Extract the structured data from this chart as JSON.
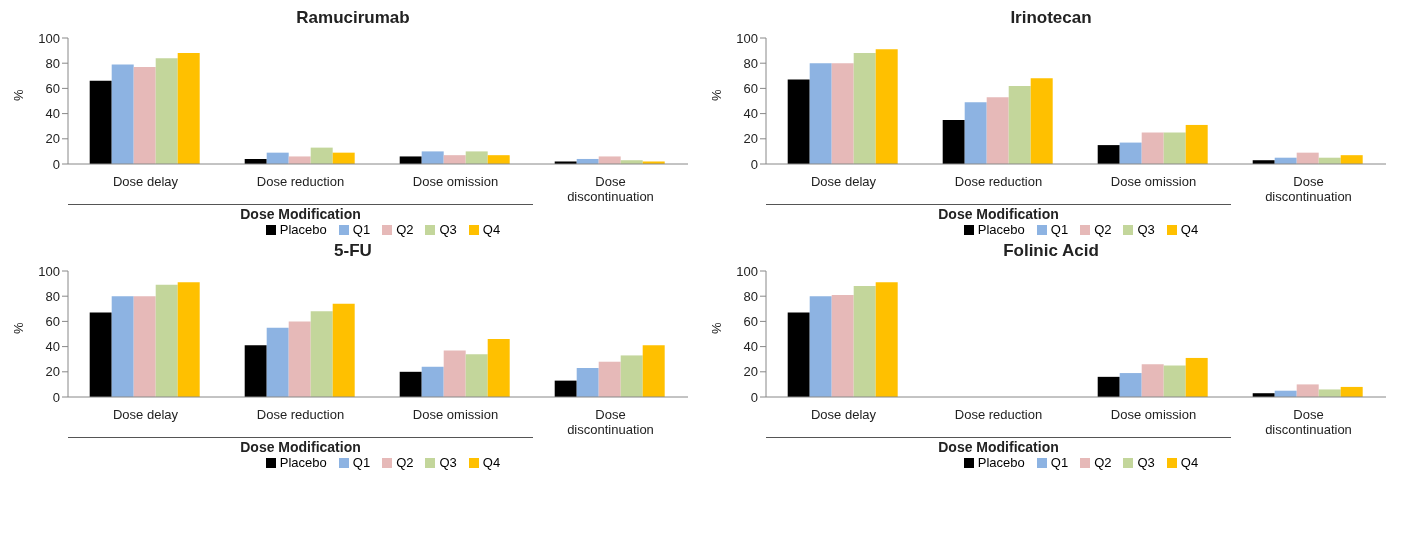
{
  "chart_data": [
    {
      "type": "bar",
      "title": "Ramucirumab",
      "ylabel": "%",
      "xlabel": "Dose Modification",
      "categories": [
        "Dose delay",
        "Dose reduction",
        "Dose omission",
        "Dose discontinuation"
      ],
      "ylim": [
        0,
        100
      ],
      "yticks": [
        0,
        20,
        40,
        60,
        80,
        100
      ],
      "grid": false,
      "legend": "bottom",
      "series": [
        {
          "name": "Placebo",
          "color": "#000000",
          "values": [
            66,
            4,
            6,
            2
          ]
        },
        {
          "name": "Q1",
          "color": "#8db3e2",
          "values": [
            79,
            9,
            10,
            4
          ]
        },
        {
          "name": "Q2",
          "color": "#e6b9b8",
          "values": [
            77,
            6,
            7,
            6
          ]
        },
        {
          "name": "Q3",
          "color": "#c3d69b",
          "values": [
            84,
            13,
            10,
            3
          ]
        },
        {
          "name": "Q4",
          "color": "#ffc000",
          "values": [
            88,
            9,
            7,
            2
          ]
        }
      ]
    },
    {
      "type": "bar",
      "title": "Irinotecan",
      "ylabel": "%",
      "xlabel": "Dose Modification",
      "categories": [
        "Dose delay",
        "Dose reduction",
        "Dose omission",
        "Dose discontinuation"
      ],
      "ylim": [
        0,
        100
      ],
      "yticks": [
        0,
        20,
        40,
        60,
        80,
        100
      ],
      "grid": false,
      "legend": "bottom",
      "series": [
        {
          "name": "Placebo",
          "color": "#000000",
          "values": [
            67,
            35,
            15,
            3
          ]
        },
        {
          "name": "Q1",
          "color": "#8db3e2",
          "values": [
            80,
            49,
            17,
            5
          ]
        },
        {
          "name": "Q2",
          "color": "#e6b9b8",
          "values": [
            80,
            53,
            25,
            9
          ]
        },
        {
          "name": "Q3",
          "color": "#c3d69b",
          "values": [
            88,
            62,
            25,
            5
          ]
        },
        {
          "name": "Q4",
          "color": "#ffc000",
          "values": [
            91,
            68,
            31,
            7
          ]
        }
      ]
    },
    {
      "type": "bar",
      "title": "5-FU",
      "ylabel": "%",
      "xlabel": "Dose Modification",
      "categories": [
        "Dose delay",
        "Dose reduction",
        "Dose omission",
        "Dose discontinuation"
      ],
      "ylim": [
        0,
        100
      ],
      "yticks": [
        0,
        20,
        40,
        60,
        80,
        100
      ],
      "grid": false,
      "legend": "bottom",
      "series": [
        {
          "name": "Placebo",
          "color": "#000000",
          "values": [
            67,
            41,
            20,
            13
          ]
        },
        {
          "name": "Q1",
          "color": "#8db3e2",
          "values": [
            80,
            55,
            24,
            23
          ]
        },
        {
          "name": "Q2",
          "color": "#e6b9b8",
          "values": [
            80,
            60,
            37,
            28
          ]
        },
        {
          "name": "Q3",
          "color": "#c3d69b",
          "values": [
            89,
            68,
            34,
            33
          ]
        },
        {
          "name": "Q4",
          "color": "#ffc000",
          "values": [
            91,
            74,
            46,
            41
          ]
        }
      ]
    },
    {
      "type": "bar",
      "title": "Folinic Acid",
      "ylabel": "%",
      "xlabel": "Dose Modification",
      "categories": [
        "Dose delay",
        "Dose reduction",
        "Dose omission",
        "Dose discontinuation"
      ],
      "ylim": [
        0,
        100
      ],
      "yticks": [
        0,
        20,
        40,
        60,
        80,
        100
      ],
      "grid": false,
      "legend": "bottom",
      "series": [
        {
          "name": "Placebo",
          "color": "#000000",
          "values": [
            67,
            null,
            16,
            3
          ]
        },
        {
          "name": "Q1",
          "color": "#8db3e2",
          "values": [
            80,
            null,
            19,
            5
          ]
        },
        {
          "name": "Q2",
          "color": "#e6b9b8",
          "values": [
            81,
            null,
            26,
            10
          ]
        },
        {
          "name": "Q3",
          "color": "#c3d69b",
          "values": [
            88,
            null,
            25,
            6
          ]
        },
        {
          "name": "Q4",
          "color": "#ffc000",
          "values": [
            91,
            null,
            31,
            8
          ]
        }
      ]
    }
  ]
}
